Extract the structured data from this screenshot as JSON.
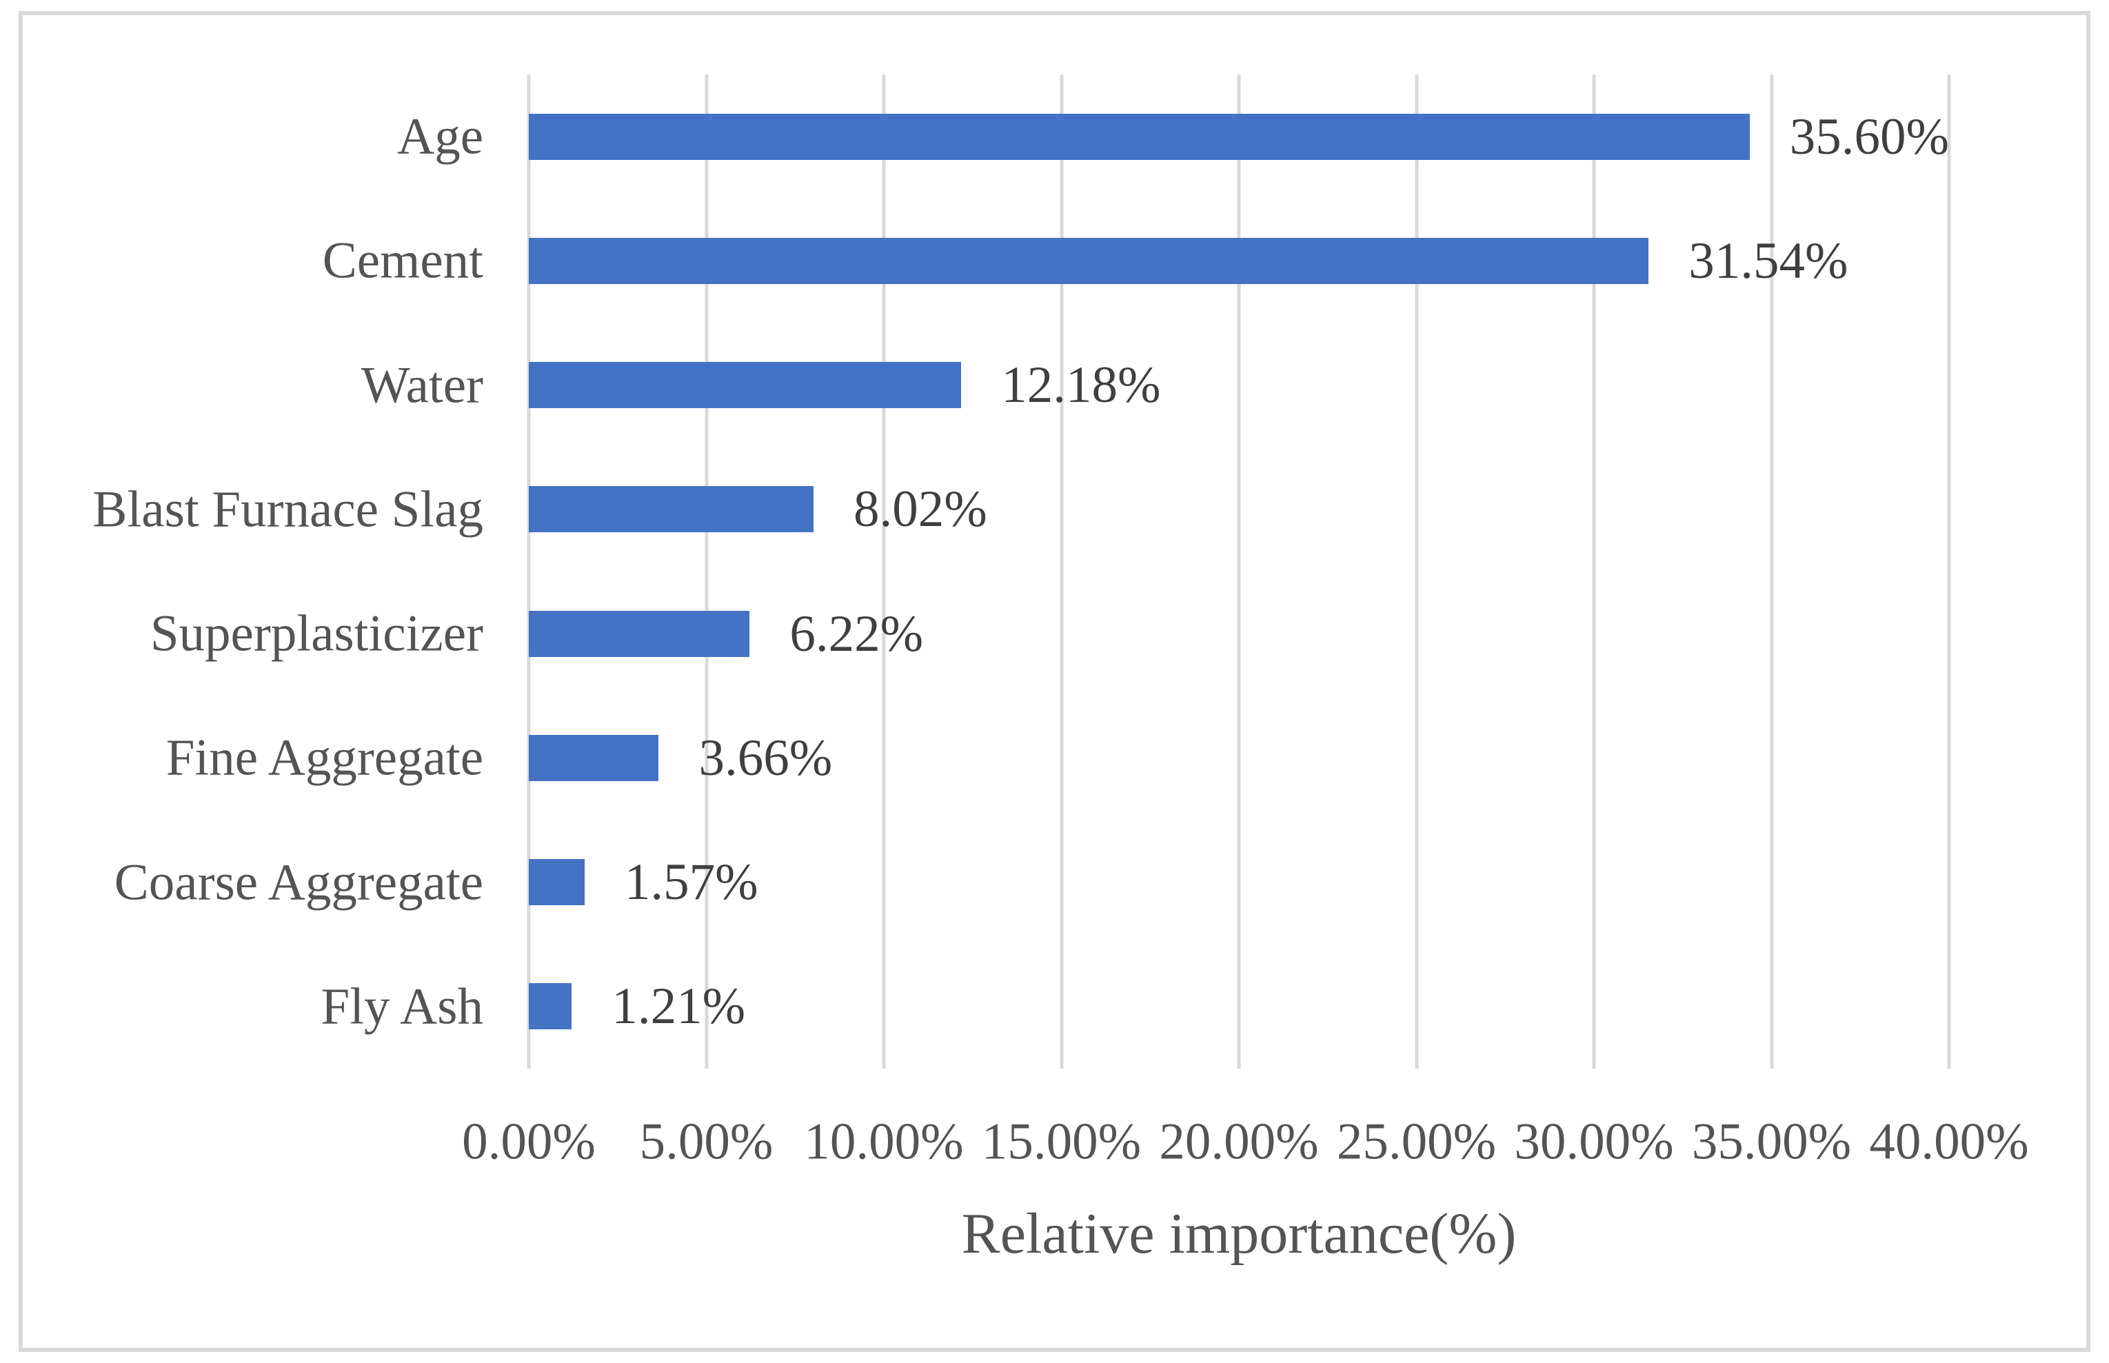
{
  "chart_data": {
    "type": "bar",
    "orientation": "horizontal",
    "title": "",
    "xlabel": "Relative importance(%)",
    "ylabel": "",
    "categories": [
      "Age",
      "Cement",
      "Water",
      "Blast Furnace Slag",
      "Superplasticizer",
      "Fine Aggregate",
      "Coarse Aggregate",
      "Fly Ash"
    ],
    "values": [
      35.6,
      31.54,
      12.18,
      8.02,
      6.22,
      3.66,
      1.57,
      1.21
    ],
    "value_labels": [
      "35.60%",
      "31.54%",
      "12.18%",
      "8.02%",
      "6.22%",
      "3.66%",
      "1.57%",
      "1.21%"
    ],
    "xlim": [
      0,
      40
    ],
    "x_tick_values": [
      0,
      5,
      10,
      15,
      20,
      25,
      30,
      35,
      40
    ],
    "x_tick_labels": [
      "0.00%",
      "5.00%",
      "10.00%",
      "15.00%",
      "20.00%",
      "25.00%",
      "30.00%",
      "35.00%",
      "40.00%"
    ],
    "grid": "vertical",
    "legend": "none",
    "colors": {
      "bar": "#4472C4",
      "gridline": "#D9D9D9",
      "frame_border": "#D9D9D9",
      "category_text": "#545454",
      "value_text": "#3F3F3F",
      "axis_text": "#545454",
      "background": "#FFFFFF"
    }
  }
}
